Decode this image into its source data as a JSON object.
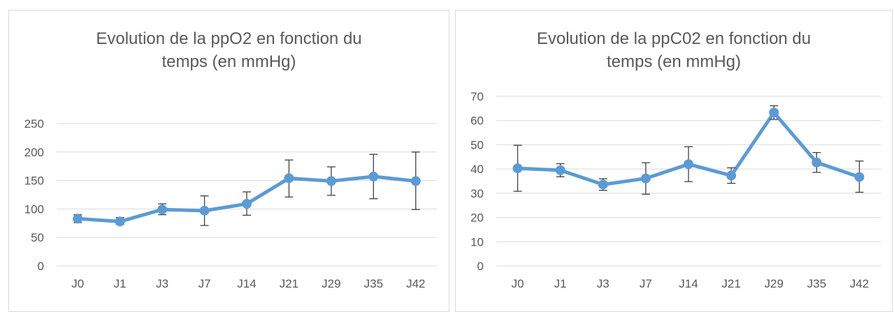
{
  "chart_data": [
    {
      "type": "line",
      "title": "Evolution de la ppO2 en fonction du\ntemps (en mmHg)",
      "categories": [
        "J0",
        "J1",
        "J3",
        "J7",
        "J14",
        "J21",
        "J29",
        "J35",
        "J42"
      ],
      "values": [
        83,
        78,
        99,
        97,
        109,
        154,
        149,
        157,
        149
      ],
      "error_low": [
        76,
        73,
        90,
        71,
        89,
        121,
        124,
        118,
        99
      ],
      "error_high": [
        90,
        85,
        109,
        123,
        130,
        186,
        174,
        196,
        200
      ],
      "ylim": [
        0,
        250
      ],
      "yticks": [
        0,
        50,
        100,
        150,
        200,
        250
      ],
      "grid": true,
      "color": "#5b9bd5"
    },
    {
      "type": "line",
      "title": "Evolution de la ppC02 en fonction du\ntemps (en mmHg)",
      "categories": [
        "J0",
        "J1",
        "J3",
        "J7",
        "J14",
        "J21",
        "J29",
        "J35",
        "J42"
      ],
      "values": [
        40.3,
        39.5,
        33.6,
        36.1,
        42.0,
        37.3,
        63.3,
        42.7,
        36.7
      ],
      "error_low": [
        30.8,
        36.8,
        31.2,
        29.6,
        34.8,
        34.1,
        60.5,
        38.6,
        30.4
      ],
      "error_high": [
        49.8,
        42.2,
        36.0,
        42.6,
        49.2,
        40.5,
        66.1,
        46.8,
        43.3
      ],
      "ylim": [
        0,
        70
      ],
      "yticks": [
        0,
        10,
        20,
        30,
        40,
        50,
        60,
        70
      ],
      "grid": true,
      "color": "#5b9bd5"
    }
  ]
}
